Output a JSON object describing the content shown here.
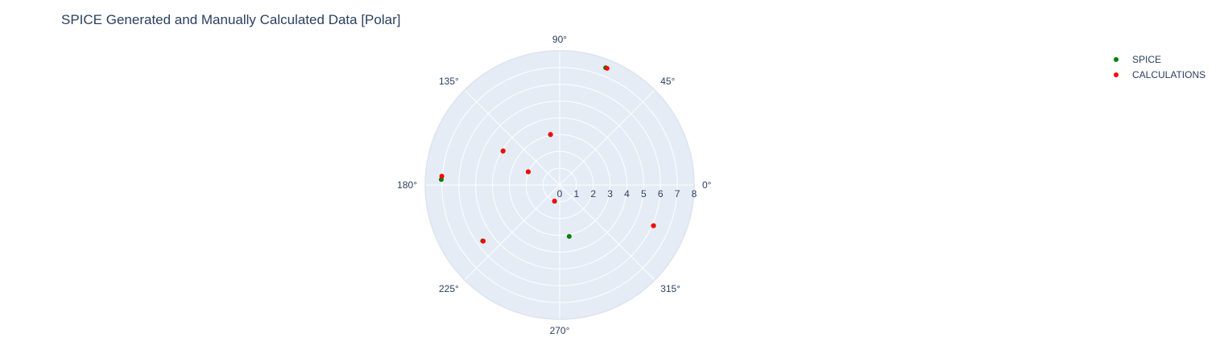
{
  "chart_data": {
    "type": "scatter",
    "subtype": "polar",
    "title": "SPICE Generated and Manually Calculated Data [Polar]",
    "radial_axis": {
      "range": [
        0,
        8
      ],
      "tick_labels": [
        "0",
        "1",
        "2",
        "3",
        "4",
        "5",
        "6",
        "7",
        "8"
      ],
      "angle": 0
    },
    "angular_axis": {
      "unit": "degrees",
      "direction": "counterclockwise",
      "rotation": 0,
      "tick_labels": [
        "0°",
        "45°",
        "90°",
        "135°",
        "180°",
        "225°",
        "270°",
        "315°"
      ]
    },
    "grid": true,
    "legend": {
      "position": "top-right"
    },
    "series": [
      {
        "name": "SPICE",
        "color": "#008000",
        "points": [
          {
            "r": 7.5,
            "theta": 68.6
          },
          {
            "r": 3.05,
            "theta": 100.3
          },
          {
            "r": 3.93,
            "theta": 149.1
          },
          {
            "r": 2.03,
            "theta": 157.2
          },
          {
            "r": 7.05,
            "theta": 177.3
          },
          {
            "r": 1.01,
            "theta": 252.8
          },
          {
            "r": 5.66,
            "theta": 216.0
          },
          {
            "r": 3.11,
            "theta": 280.5
          },
          {
            "r": 6.09,
            "theta": 336.6
          }
        ]
      },
      {
        "name": "CALCULATIONS",
        "color": "#ff0000",
        "points": [
          {
            "r": 7.5,
            "theta": 67.9
          },
          {
            "r": 3.06,
            "theta": 100.2
          },
          {
            "r": 3.93,
            "theta": 148.8
          },
          {
            "r": 2.03,
            "theta": 157.0
          },
          {
            "r": 7.03,
            "theta": 175.7
          },
          {
            "r": 1.01,
            "theta": 252.0
          },
          {
            "r": 5.64,
            "theta": 216.3
          },
          {
            "r": 6.08,
            "theta": 336.5
          }
        ]
      }
    ]
  }
}
